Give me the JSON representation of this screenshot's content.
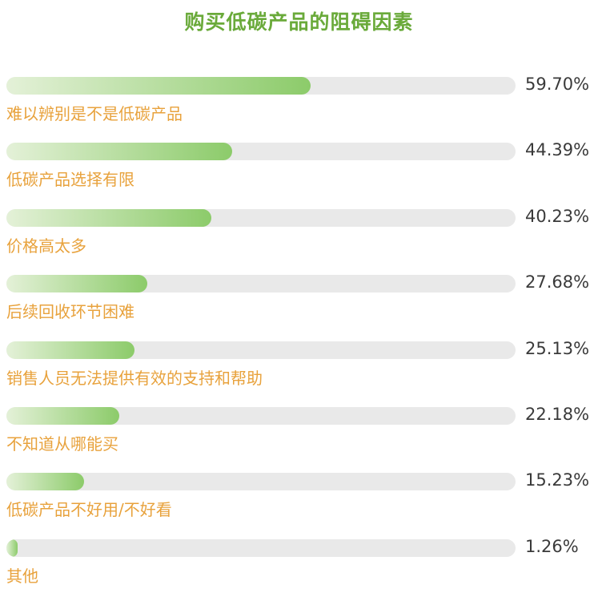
{
  "colors": {
    "title": "#6aaa3a",
    "bar_start": "#e4f1d8",
    "bar_end": "#8ccb6a",
    "track": "#e9e9e9",
    "label": "#e8a23c",
    "percent": "#3a3a3a"
  },
  "chart_data": {
    "type": "bar",
    "orientation": "horizontal",
    "title": "购买低碳产品的阻碍因素",
    "xlim": [
      0,
      100
    ],
    "categories": [
      "难以辨别是不是低碳产品",
      "低碳产品选择有限",
      "价格高太多",
      "后续回收环节困难",
      "销售人员无法提供有效的支持和帮助",
      "不知道从哪能买",
      "低碳产品不好用/不好看",
      "其他"
    ],
    "values": [
      59.7,
      44.39,
      40.23,
      27.68,
      25.13,
      22.18,
      15.23,
      1.26
    ],
    "value_labels": [
      "59.70%",
      "44.39%",
      "40.23%",
      "27.68%",
      "25.13%",
      "22.18%",
      "15.23%",
      "1.26%"
    ]
  }
}
